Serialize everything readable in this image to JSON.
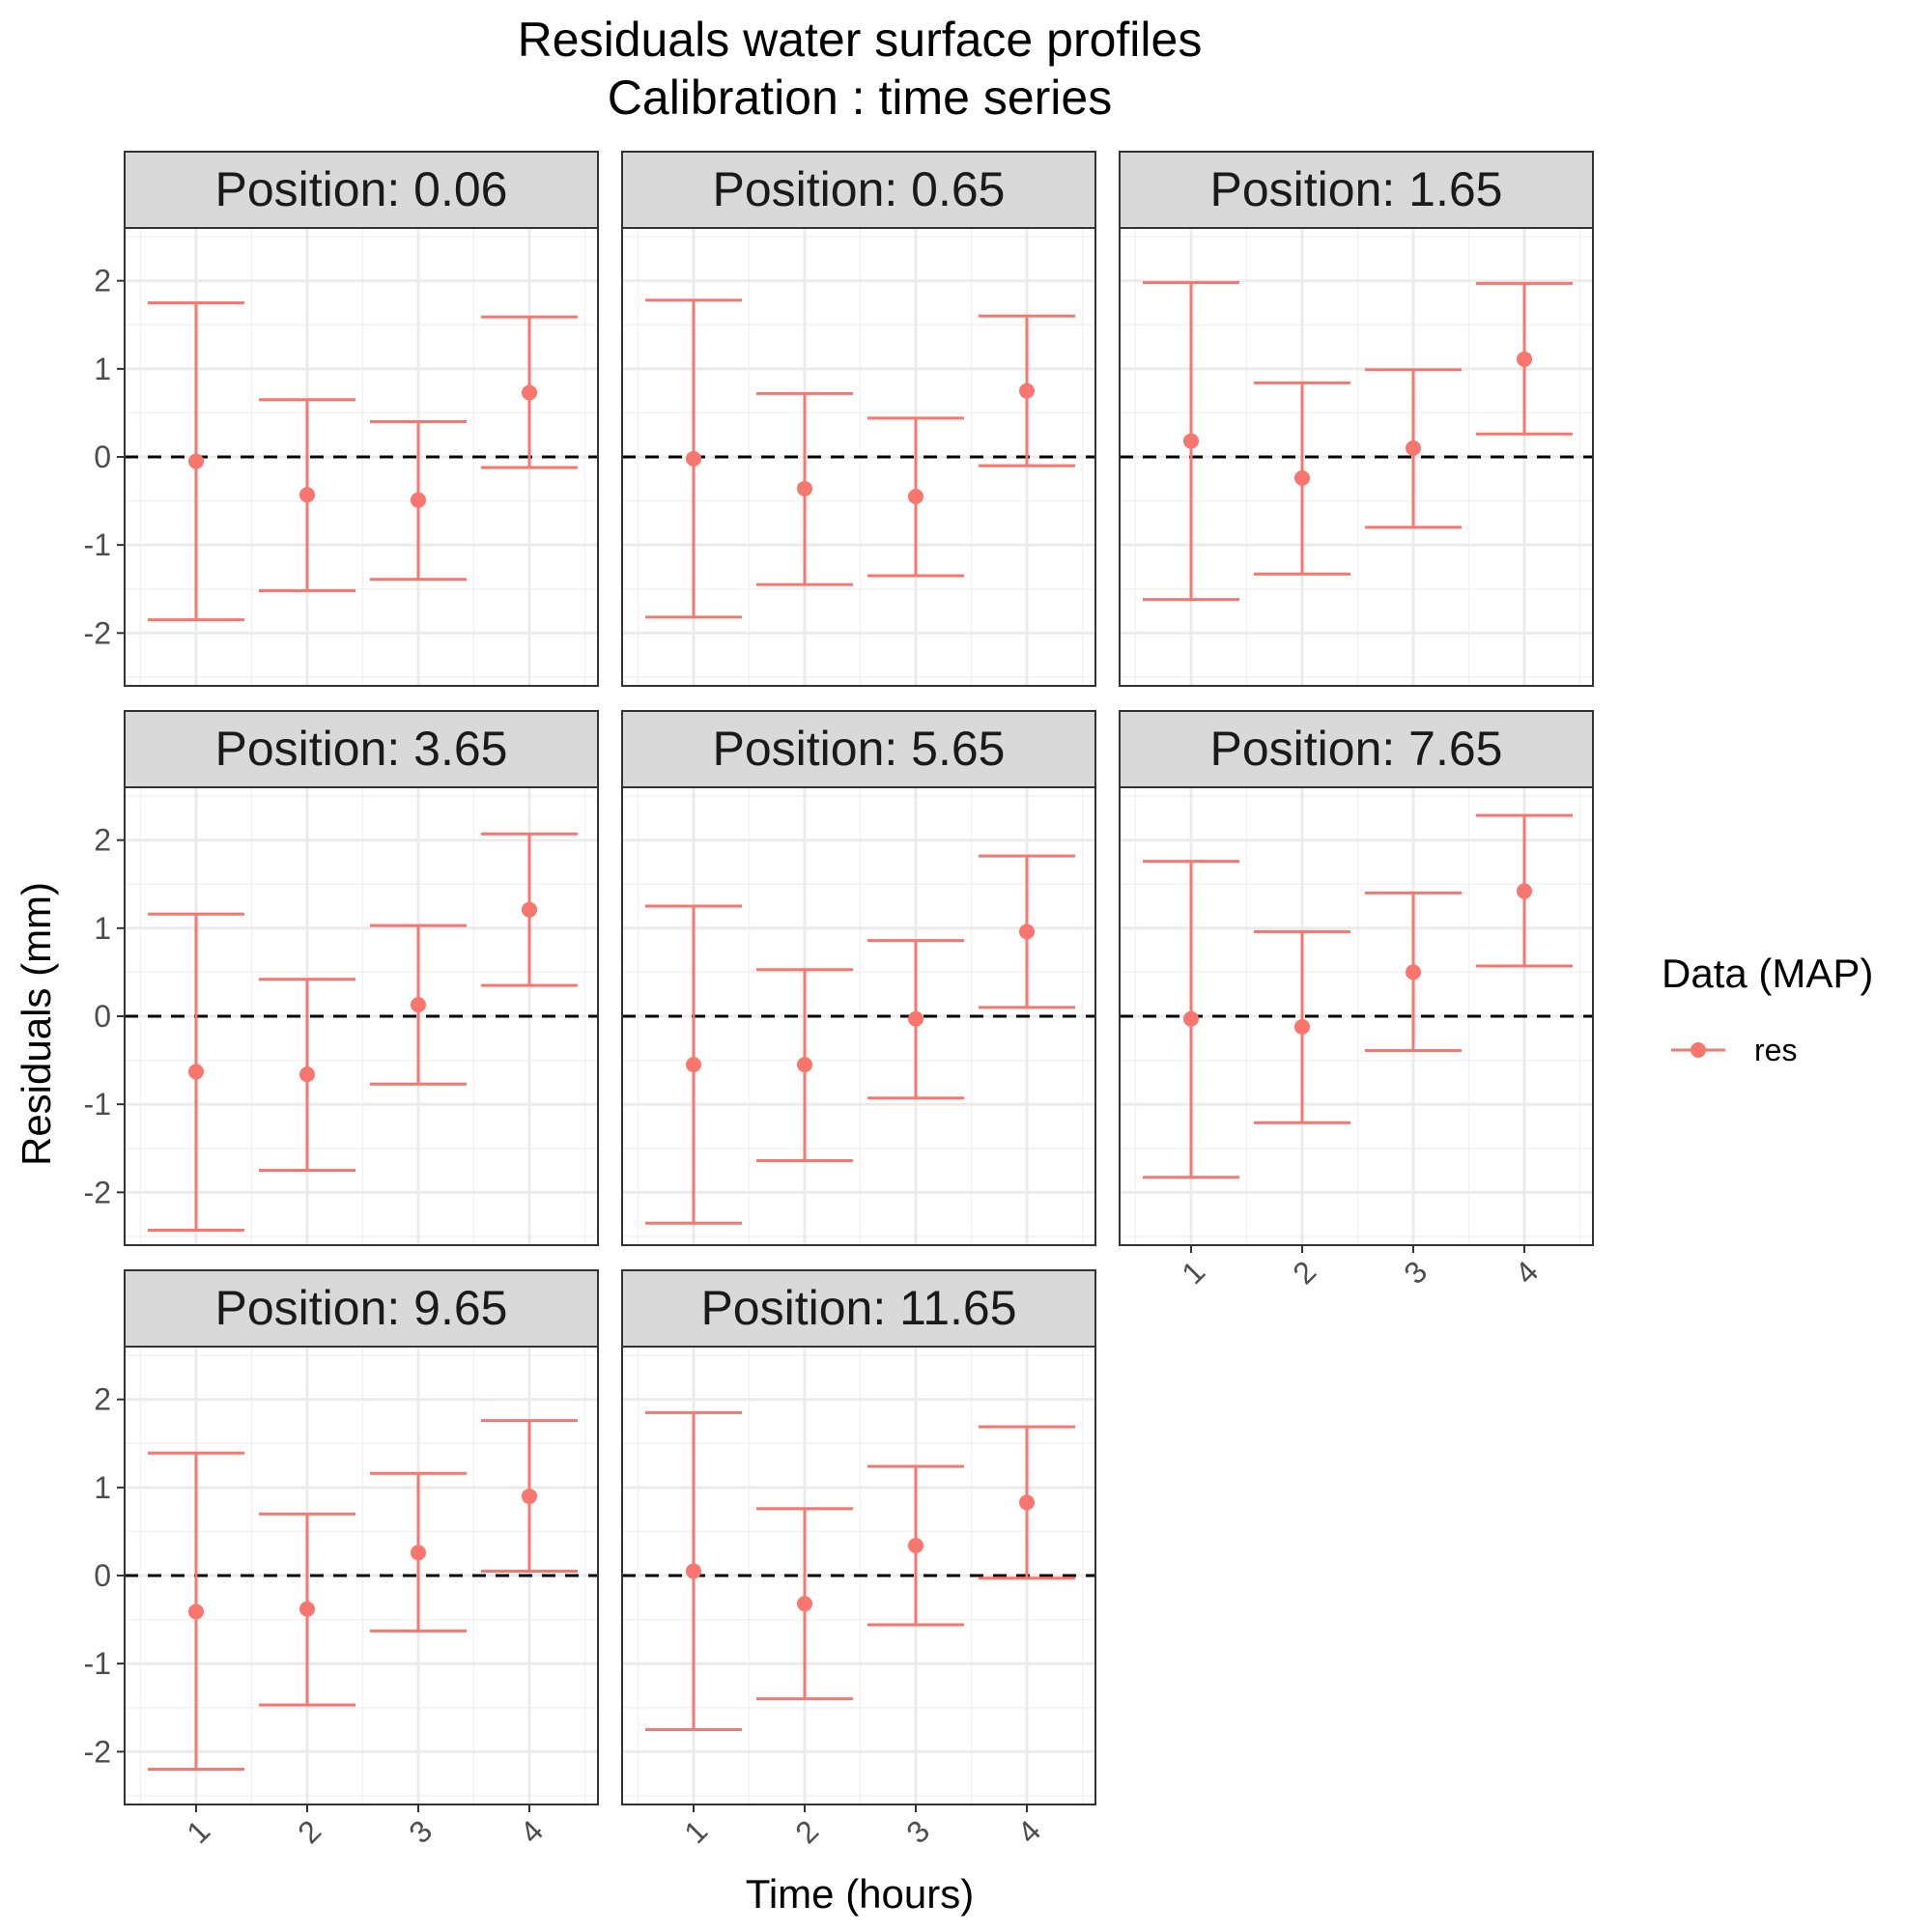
{
  "chart_data": {
    "type": "scatter",
    "title_line1": "Residuals water surface profiles",
    "title_line2": "Calibration : time series",
    "xlabel": "Time (hours)",
    "ylabel": "Residuals (mm)",
    "x_ticks": [
      "1",
      "2",
      "3",
      "4"
    ],
    "y_ticks": [
      "2",
      "1",
      "0",
      "-1",
      "-2"
    ],
    "ylim": [
      -2.6,
      2.6
    ],
    "reference_line": 0,
    "legend": {
      "title": "Data (MAP)",
      "entry": "res",
      "position": "right"
    },
    "grid": true,
    "series_color": "#F8766D",
    "panels": [
      {
        "strip": "Position:  0.06",
        "points": [
          {
            "x": 1,
            "y": -0.05,
            "lower": -1.85,
            "upper": 1.75
          },
          {
            "x": 2,
            "y": -0.43,
            "lower": -1.52,
            "upper": 0.65
          },
          {
            "x": 3,
            "y": -0.49,
            "lower": -1.39,
            "upper": 0.4
          },
          {
            "x": 4,
            "y": 0.73,
            "lower": -0.12,
            "upper": 1.59
          }
        ]
      },
      {
        "strip": "Position:  0.65",
        "points": [
          {
            "x": 1,
            "y": -0.02,
            "lower": -1.82,
            "upper": 1.78
          },
          {
            "x": 2,
            "y": -0.36,
            "lower": -1.45,
            "upper": 0.72
          },
          {
            "x": 3,
            "y": -0.45,
            "lower": -1.35,
            "upper": 0.44
          },
          {
            "x": 4,
            "y": 0.75,
            "lower": -0.1,
            "upper": 1.6
          }
        ]
      },
      {
        "strip": "Position:  1.65",
        "points": [
          {
            "x": 1,
            "y": 0.18,
            "lower": -1.62,
            "upper": 1.98
          },
          {
            "x": 2,
            "y": -0.24,
            "lower": -1.33,
            "upper": 0.84
          },
          {
            "x": 3,
            "y": 0.1,
            "lower": -0.8,
            "upper": 0.99
          },
          {
            "x": 4,
            "y": 1.11,
            "lower": 0.26,
            "upper": 1.97
          }
        ]
      },
      {
        "strip": "Position:  3.65",
        "points": [
          {
            "x": 1,
            "y": -0.63,
            "lower": -2.43,
            "upper": 1.16
          },
          {
            "x": 2,
            "y": -0.66,
            "lower": -1.75,
            "upper": 0.42
          },
          {
            "x": 3,
            "y": 0.13,
            "lower": -0.77,
            "upper": 1.03
          },
          {
            "x": 4,
            "y": 1.21,
            "lower": 0.35,
            "upper": 2.07
          }
        ]
      },
      {
        "strip": "Position:  5.65",
        "points": [
          {
            "x": 1,
            "y": -0.55,
            "lower": -2.35,
            "upper": 1.25
          },
          {
            "x": 2,
            "y": -0.55,
            "lower": -1.64,
            "upper": 0.53
          },
          {
            "x": 3,
            "y": -0.03,
            "lower": -0.93,
            "upper": 0.86
          },
          {
            "x": 4,
            "y": 0.96,
            "lower": 0.1,
            "upper": 1.82
          }
        ]
      },
      {
        "strip": "Position:  7.65",
        "points": [
          {
            "x": 1,
            "y": -0.03,
            "lower": -1.83,
            "upper": 1.76
          },
          {
            "x": 2,
            "y": -0.12,
            "lower": -1.21,
            "upper": 0.96
          },
          {
            "x": 3,
            "y": 0.5,
            "lower": -0.39,
            "upper": 1.4
          },
          {
            "x": 4,
            "y": 1.42,
            "lower": 0.57,
            "upper": 2.28
          }
        ]
      },
      {
        "strip": "Position:  9.65",
        "points": [
          {
            "x": 1,
            "y": -0.41,
            "lower": -2.2,
            "upper": 1.39
          },
          {
            "x": 2,
            "y": -0.38,
            "lower": -1.47,
            "upper": 0.7
          },
          {
            "x": 3,
            "y": 0.26,
            "lower": -0.63,
            "upper": 1.16
          },
          {
            "x": 4,
            "y": 0.9,
            "lower": 0.05,
            "upper": 1.76
          }
        ]
      },
      {
        "strip": "Position:  11.65",
        "points": [
          {
            "x": 1,
            "y": 0.05,
            "lower": -1.75,
            "upper": 1.85
          },
          {
            "x": 2,
            "y": -0.32,
            "lower": -1.4,
            "upper": 0.76
          },
          {
            "x": 3,
            "y": 0.34,
            "lower": -0.56,
            "upper": 1.24
          },
          {
            "x": 4,
            "y": 0.83,
            "lower": -0.03,
            "upper": 1.69
          }
        ]
      }
    ]
  }
}
